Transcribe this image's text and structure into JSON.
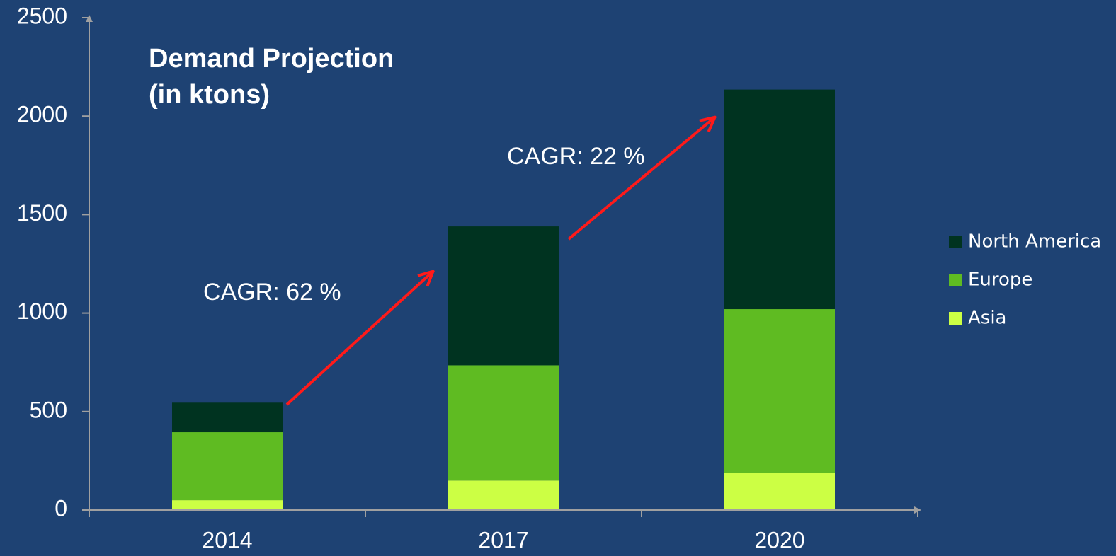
{
  "chart_data": {
    "type": "stacked_bar",
    "title": "Demand Projection (in ktons)",
    "categories": [
      "2014",
      "2017",
      "2020"
    ],
    "series": [
      {
        "name": "Asia",
        "color": "#ccff44",
        "values": [
          50,
          150,
          190
        ]
      },
      {
        "name": "Europe",
        "color": "#5fbb22",
        "values": [
          345,
          585,
          830
        ]
      },
      {
        "name": "North America",
        "color": "#003320",
        "values": [
          150,
          705,
          1115
        ]
      }
    ],
    "annotations": [
      "CAGR: 62 %",
      "CAGR: 22 %"
    ],
    "ylim": [
      0,
      2500
    ],
    "yticks": [
      0,
      500,
      1000,
      1500,
      2000,
      2500
    ],
    "legend": "right",
    "grid": false
  }
}
